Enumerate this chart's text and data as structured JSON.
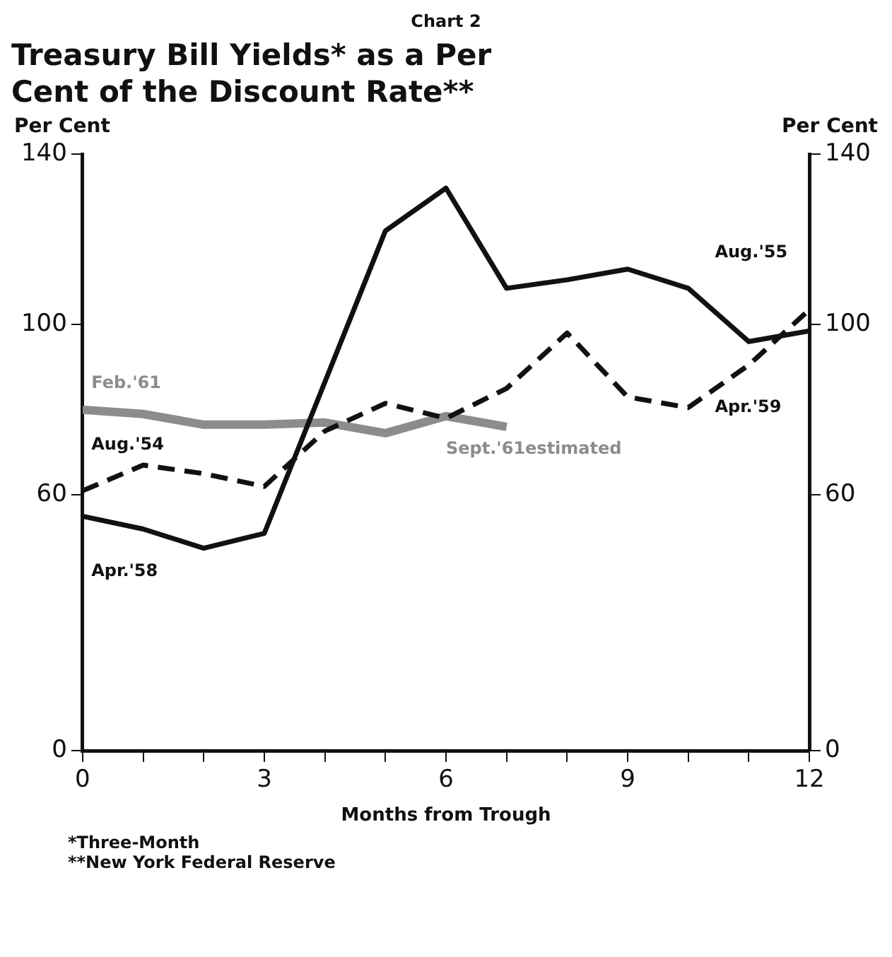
{
  "chart_data": {
    "type": "line",
    "subtitle": "Chart 2",
    "title": "Treasury Bill Yields* as a Per Cent of the Discount Rate**",
    "ylabel": "Per Cent",
    "y2label": "Per Cent",
    "xlabel": "Months from Trough",
    "series": [
      {
        "color": "#111111",
        "line_style": "solid",
        "x": [
          0,
          1,
          2,
          3,
          5,
          6,
          7,
          8,
          9,
          10,
          11,
          12
        ],
        "values": [
          55,
          52,
          47.5,
          51,
          122,
          132,
          108.5,
          110.5,
          113,
          108.5,
          96,
          98.5
        ]
      },
      {
        "color": "#111111",
        "line_style": "dashed",
        "x": [
          0,
          1,
          2,
          3,
          4,
          5,
          6,
          7,
          8,
          9,
          10,
          11,
          12
        ],
        "values": [
          61,
          67,
          65,
          62,
          75,
          81.5,
          78,
          85,
          98,
          83,
          80.5,
          90.5,
          103.5
        ]
      },
      {
        "color": "#8c8c8c",
        "line_style": "solid",
        "x": [
          0,
          1,
          2,
          3,
          4,
          5,
          6,
          7
        ],
        "values": [
          80,
          79,
          76.5,
          76.5,
          77,
          74.5,
          78.5,
          76
        ]
      }
    ],
    "xlim": [
      0,
      12
    ],
    "xticks": [
      0,
      {
        "value": 1,
        "label": null
      },
      {
        "value": 2,
        "label": null
      },
      3,
      {
        "value": 4,
        "label": null
      },
      {
        "value": 5,
        "label": null
      },
      6,
      {
        "value": 7,
        "label": null
      },
      {
        "value": 8,
        "label": null
      },
      9,
      {
        "value": 10,
        "label": null
      },
      {
        "value": 11,
        "label": null
      },
      12
    ],
    "ylim": [
      0,
      140
    ],
    "yticks": [
      0,
      60,
      100,
      140
    ],
    "y2lim": [
      0,
      140
    ],
    "y2ticks": [
      0,
      60,
      100,
      140
    ],
    "marker": "none",
    "grid": false,
    "legend": false,
    "annotations": [
      "Feb.'61",
      "Aug.'54",
      "Apr.'58",
      "Sept.'61estimated",
      "Aug.'55",
      "Apr.'59",
      "*Three-Month",
      "**New York Federal Reserve"
    ]
  }
}
